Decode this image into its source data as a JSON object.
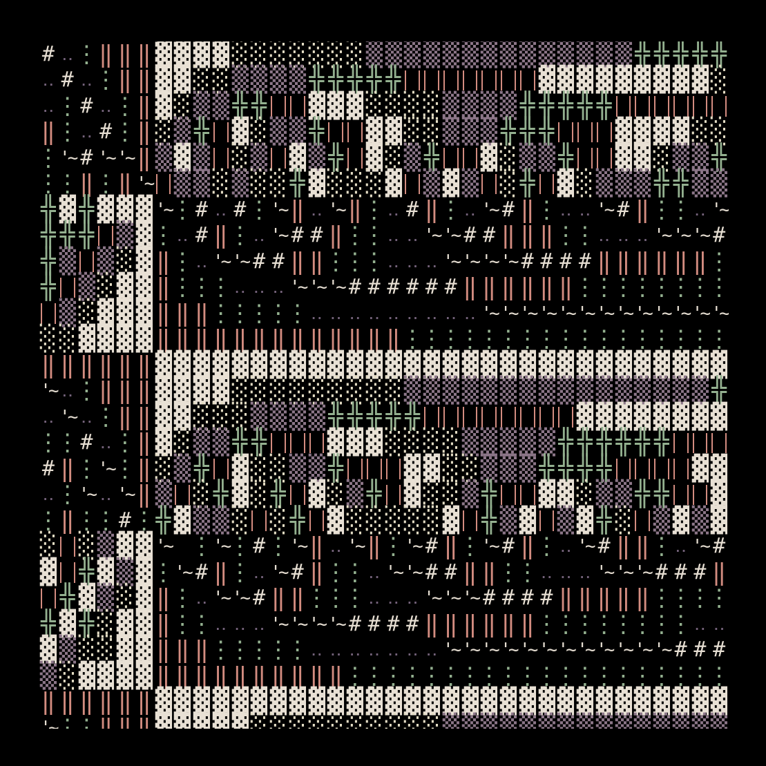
{
  "background": "#000000",
  "glyphs": {
    "H": {
      "char": "#",
      "color": "#e6ded2"
    },
    "p": {
      "char": "‥",
      "color": "#74627a"
    },
    "g": {
      "char": "⋮",
      "color": "#93b08f"
    },
    "s": {
      "char": "‖",
      "color": "#d38c80"
    },
    "D": {
      "char": "▓",
      "color": "#e8e0d4"
    },
    "L": {
      "char": "░",
      "color": "#e3dcc4"
    },
    "M": {
      "char": "▒",
      "color": "#8c7688"
    },
    "X": {
      "char": "╬",
      "color": "#93b08f"
    },
    "B": {
      "char": "|",
      "color": "#d38c80"
    },
    "T": {
      "char": "'~",
      "color": "#e6ded2"
    },
    "_": {
      "char": " ",
      "color": "#000000"
    }
  },
  "rows": [
    "HpgsssDDDDLLLLLLLMMMMMMMMMMMMMMXXXXX",
    "pHpgssDDLLMMMMXXXXXBBBBBBBDDDDDDDDDL",
    "pgHpgsDLMMXXBBDDDLLLLMMMMXXXXXBBBBBB",
    "sgpHgsLMXBDLMMXBBDDLLMMMXXXBBBDDDDLL",
    "gTHTTsMDMBLMBDMXBDLMXBBDLMMXBBDDLMMX",
    "ggsgsTBMMLMLLXDLLLDBMDMBLXBDLMMMXXMM",
    "XDXDDDTgHpHgTspTsgpHsgpTHsgppTHsggpT",
    "XXXBMDgpHsgpTHHsggppTTHHsssggpppTTTH",
    "XMBMLDsgpTTHHssgggpppTTTTHHHHssssssg",
    "XBMLDDsgggpppTTTHHHHHHssssssgggggggg",
    "BMLDDDsssgggggpppppppppTTTTTTTTTTTTT",
    "LLDDDDsssssssssssssggggggggggggggggg",
    "ssssssDDDDDDDDDDDDDDDDDDDDDDDDDDDDDD",
    "TpgsssDDDDLLLLLLLLLMMMMMMMMMMMMMMMMX",
    "pTpgssDDLLLMMMMXXXXXBBBBBBBBDDDDDDDD",
    "ggHpgsDLMMXXBBBDDDLLLLMMMMMXXXXXXBBB",
    "HsgTgsLMXBDLLMMXBBBDDLLMMMXXXXBBBBDD",
    "pgTpTsMBLXDLXBDLMXBDLLMXBBDDLMMXXBBD",
    "gsggHgXDMMLBLXBDLLLLLDBXMDBMDXLBMDMD",
    "LBLMDDT_gTgHgTspTsgTHsgTHsgpTHssgpTH",
    "DBXDMDgTHsgpTHsggpTTHHssggpppTTTHHHs",
    "BXDMLDsgpTTHssgggpppTTTHHHHsssssgggg",
    "XDXLDDsggpppTTTTHHHHssssssggggggggpp",
    "DMLLDDsssgggggpppppppTTTTTTTTTTTTHHH",
    "MLDDDDssssssssssgggggggggggggggggggg",
    "ssssssDDDDDDDDDDDDDDDDDDDDDDDDDDDDDD",
    "TggsssDDDDDLLLLLLLLLLMMMMMMMMMMMMMMM"
  ]
}
